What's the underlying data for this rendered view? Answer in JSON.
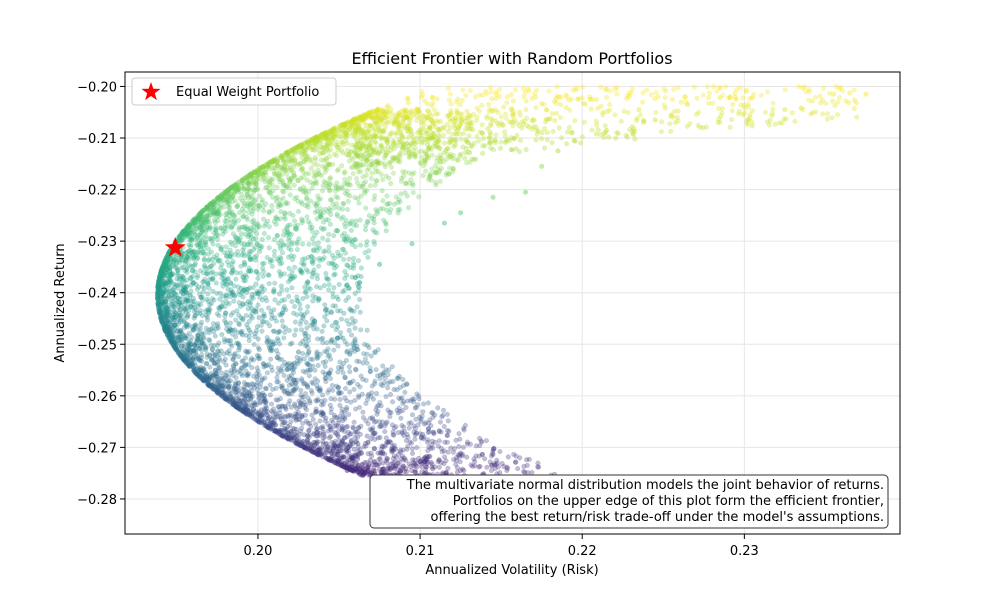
{
  "chart_data": {
    "type": "scatter",
    "title": "Efficient Frontier with Random Portfolios",
    "xlabel": "Annualized Volatility (Risk)",
    "ylabel": "Annualized Return",
    "xlim": [
      0.1918,
      0.2396
    ],
    "ylim": [
      -0.2868,
      -0.1972
    ],
    "xticks": [
      0.2,
      0.21,
      0.22,
      0.23
    ],
    "xtick_labels": [
      "0.20",
      "0.21",
      "0.22",
      "0.23"
    ],
    "yticks": [
      -0.2,
      -0.21,
      -0.22,
      -0.23,
      -0.24,
      -0.25,
      -0.26,
      -0.27,
      -0.28
    ],
    "ytick_labels": [
      "−0.20",
      "−0.21",
      "−0.22",
      "−0.23",
      "−0.24",
      "−0.25",
      "−0.26",
      "−0.27",
      "−0.28"
    ],
    "grid": true,
    "colormap": "viridis",
    "frontier": {
      "min_variance_point": [
        0.1938,
        -0.2405
      ],
      "upper_end": [
        0.2073,
        -0.2045
      ],
      "lower_end": [
        0.2065,
        -0.2755
      ]
    },
    "cloud_samples": [
      [
        0.2375,
        -0.2015
      ],
      [
        0.2365,
        -0.2013
      ],
      [
        0.2355,
        -0.2015
      ],
      [
        0.2335,
        -0.2042
      ],
      [
        0.2325,
        -0.2045
      ],
      [
        0.2305,
        -0.2022
      ],
      [
        0.2295,
        -0.2025
      ],
      [
        0.2285,
        -0.2022
      ],
      [
        0.2265,
        -0.2035
      ],
      [
        0.2255,
        -0.2055
      ],
      [
        0.2245,
        -0.2065
      ],
      [
        0.2235,
        -0.2045
      ],
      [
        0.2215,
        -0.2085
      ],
      [
        0.2205,
        -0.2025
      ],
      [
        0.2195,
        -0.2105
      ],
      [
        0.2185,
        -0.2125
      ],
      [
        0.2175,
        -0.2155
      ],
      [
        0.2165,
        -0.2205
      ],
      [
        0.2145,
        -0.2215
      ],
      [
        0.2125,
        -0.2245
      ],
      [
        0.2115,
        -0.2265
      ],
      [
        0.2095,
        -0.2305
      ],
      [
        0.2075,
        -0.2345
      ],
      [
        0.2055,
        -0.2385
      ],
      [
        0.2035,
        -0.2455
      ],
      [
        0.2025,
        -0.2515
      ],
      [
        0.2015,
        -0.2585
      ],
      [
        0.2038,
        -0.2705
      ],
      [
        0.2055,
        -0.2745
      ],
      [
        0.2095,
        -0.2785
      ],
      [
        0.2125,
        -0.2805
      ]
    ],
    "series": [
      {
        "name": "Equal Weight Portfolio",
        "marker": "star",
        "color": "#ff0000",
        "x": [
          0.1949
        ],
        "y": [
          -0.2313
        ]
      }
    ],
    "legend": {
      "placement": "upper-left",
      "entries": [
        "Equal Weight Portfolio"
      ]
    },
    "annotation": {
      "placement": "lower-right",
      "lines": [
        "The multivariate normal distribution models the joint behavior of returns.",
        "Portfolios on the upper edge of this plot form the efficient frontier,",
        "offering the best return/risk trade-off under the model's assumptions."
      ]
    }
  }
}
